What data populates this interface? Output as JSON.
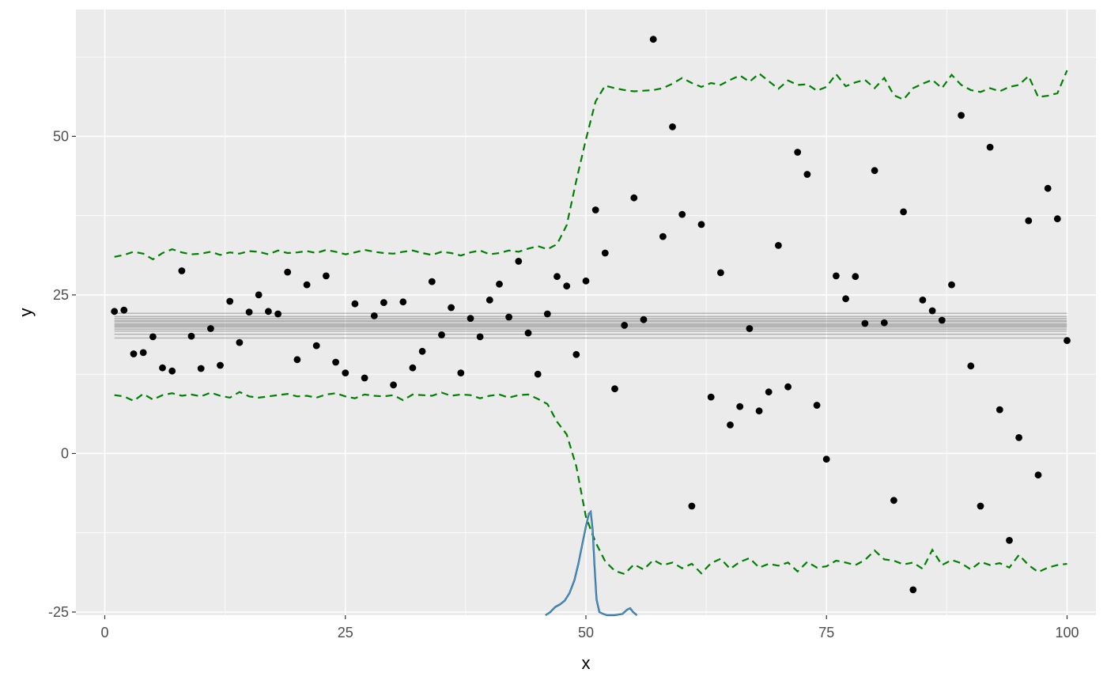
{
  "chart_data": {
    "type": "scatter",
    "title": "",
    "xlabel": "x",
    "ylabel": "y",
    "xlim": [
      -3,
      103
    ],
    "ylim": [
      -25.5,
      70
    ],
    "x_ticks": [
      0,
      25,
      50,
      75,
      100
    ],
    "x_tick_labels": [
      "0",
      "25",
      "50",
      "75",
      "100"
    ],
    "y_ticks": [
      -25,
      0,
      25,
      50
    ],
    "y_tick_labels": [
      "-25",
      "0",
      "25",
      "50"
    ],
    "grid": true,
    "legend": "none",
    "colors": {
      "panel": "#ebebeb",
      "grid": "#ffffff",
      "points": "#000000",
      "bounds": "#008000",
      "band": "#808080",
      "density": "#3a9ad9",
      "density_dark": "#1a1a1a"
    },
    "points": {
      "x": [
        1,
        2,
        3,
        4,
        5,
        6,
        7,
        8,
        9,
        10,
        11,
        12,
        13,
        14,
        15,
        16,
        17,
        18,
        19,
        20,
        21,
        22,
        23,
        24,
        25,
        26,
        27,
        28,
        29,
        30,
        31,
        32,
        33,
        34,
        35,
        36,
        37,
        38,
        39,
        40,
        41,
        42,
        43,
        44,
        45,
        46,
        47,
        48,
        49,
        50,
        51,
        52,
        53,
        54,
        55,
        56,
        57,
        58,
        59,
        60,
        61,
        62,
        63,
        64,
        65,
        66,
        67,
        68,
        69,
        70,
        71,
        72,
        73,
        74,
        75,
        76,
        77,
        78,
        79,
        80,
        81,
        82,
        83,
        84,
        85,
        86,
        87,
        88,
        89,
        90,
        91,
        92,
        93,
        94,
        95,
        96,
        97,
        98,
        99,
        100
      ],
      "y": [
        22.4,
        22.6,
        15.7,
        15.9,
        18.4,
        13.5,
        13.0,
        28.8,
        18.5,
        13.4,
        19.7,
        13.9,
        24.0,
        17.5,
        22.3,
        25.0,
        22.4,
        22.0,
        28.6,
        14.8,
        26.6,
        17.0,
        28.0,
        14.4,
        12.7,
        23.6,
        11.9,
        21.7,
        23.8,
        10.8,
        23.9,
        13.5,
        16.1,
        27.1,
        18.7,
        23.0,
        12.7,
        21.3,
        18.4,
        24.2,
        26.7,
        21.5,
        30.3,
        19.0,
        12.5,
        22.0,
        27.9,
        26.4,
        15.6,
        27.2,
        38.4,
        31.6,
        10.2,
        20.2,
        40.3,
        21.1,
        65.3,
        34.2,
        51.5,
        37.7,
        -8.3,
        36.1,
        8.9,
        28.5,
        4.5,
        7.4,
        19.7,
        6.7,
        9.7,
        32.8,
        10.5,
        47.5,
        44.0,
        7.6,
        -0.9,
        28.0,
        24.4,
        27.9,
        20.5,
        44.6,
        20.6,
        -7.4,
        38.1,
        -21.5,
        24.2,
        22.5,
        21.0,
        26.6,
        53.3,
        13.8,
        -8.3,
        48.3,
        6.9,
        -13.7,
        2.5,
        36.7,
        -3.4,
        41.8,
        37.0,
        17.8
      ]
    },
    "bounds": {
      "upper": [
        31.0,
        31.3,
        31.8,
        31.5,
        30.6,
        31.6,
        32.2,
        31.7,
        31.4,
        31.5,
        31.8,
        31.3,
        31.7,
        31.5,
        31.9,
        31.8,
        31.4,
        32.0,
        31.6,
        31.7,
        31.9,
        31.6,
        32.1,
        31.8,
        31.4,
        31.7,
        32.1,
        31.8,
        31.6,
        31.5,
        31.8,
        32.0,
        31.6,
        31.3,
        31.8,
        31.6,
        31.2,
        31.7,
        32.0,
        31.4,
        31.6,
        32.0,
        31.8,
        32.3,
        32.7,
        32.2,
        33.0,
        36.0,
        43.0,
        49.5,
        55.5,
        58.0,
        57.6,
        57.3,
        57.1,
        57.2,
        57.3,
        57.6,
        58.3,
        59.2,
        58.4,
        57.8,
        58.4,
        58.1,
        58.9,
        59.6,
        58.6,
        59.9,
        58.7,
        57.5,
        58.8,
        58.1,
        58.2,
        57.2,
        57.8,
        59.8,
        57.9,
        58.5,
        58.9,
        57.6,
        59.2,
        56.5,
        55.8,
        57.6,
        58.3,
        58.9,
        57.6,
        59.7,
        58.1,
        57.3,
        57.0,
        57.6,
        57.1,
        57.8,
        58.1,
        59.5,
        56.2,
        56.4,
        56.8,
        60.4
      ],
      "lower": [
        9.2,
        9.0,
        8.3,
        9.4,
        8.5,
        9.2,
        9.5,
        9.1,
        9.3,
        9.0,
        9.6,
        9.1,
        8.8,
        9.7,
        9.0,
        8.8,
        9.0,
        9.2,
        9.4,
        9.0,
        9.1,
        8.8,
        9.3,
        9.5,
        9.0,
        8.7,
        9.3,
        9.1,
        9.0,
        9.2,
        8.4,
        9.3,
        9.2,
        9.1,
        9.6,
        9.1,
        9.3,
        9.2,
        8.7,
        9.1,
        9.3,
        8.8,
        9.2,
        9.3,
        8.6,
        7.8,
        5.0,
        3.0,
        -2.0,
        -10.0,
        -14.0,
        -17.0,
        -18.5,
        -19.0,
        -17.5,
        -18.3,
        -16.8,
        -17.6,
        -17.2,
        -18.1,
        -17.4,
        -18.9,
        -17.3,
        -16.6,
        -18.2,
        -17.1,
        -16.5,
        -18.0,
        -17.4,
        -17.7,
        -17.2,
        -18.6,
        -17.1,
        -18.0,
        -17.8,
        -16.9,
        -17.2,
        -17.6,
        -16.8,
        -15.3,
        -16.7,
        -16.9,
        -17.5,
        -17.2,
        -18.2,
        -15.2,
        -17.6,
        -16.8,
        -17.3,
        -18.3,
        -17.1,
        -17.6,
        -17.3,
        -18.0,
        -16.0,
        -17.6,
        -18.7,
        -18.0,
        -17.6,
        -17.4
      ]
    },
    "band": {
      "x_range": [
        1,
        100
      ],
      "lines": [
        18.2,
        18.8,
        19.3,
        19.6,
        19.9,
        20.1,
        20.3,
        20.5,
        20.8,
        21.0,
        21.3,
        21.6,
        22.1
      ]
    },
    "density": {
      "x": [
        45.8,
        46.3,
        46.8,
        47.3,
        47.8,
        48.3,
        48.8,
        49.2,
        49.6,
        50.0,
        50.3,
        50.5,
        50.7,
        50.9,
        51.1,
        51.4,
        51.8,
        52.2,
        53.0,
        53.8,
        54.3,
        54.6,
        54.9,
        55.3
      ],
      "y": [
        -25.5,
        -25.0,
        -24.2,
        -23.8,
        -23.2,
        -22.0,
        -20.0,
        -17.5,
        -14.5,
        -11.5,
        -9.5,
        -9.2,
        -12.0,
        -18.0,
        -23.0,
        -25.0,
        -25.3,
        -25.5,
        -25.5,
        -25.3,
        -24.6,
        -24.4,
        -25.0,
        -25.5
      ]
    }
  }
}
